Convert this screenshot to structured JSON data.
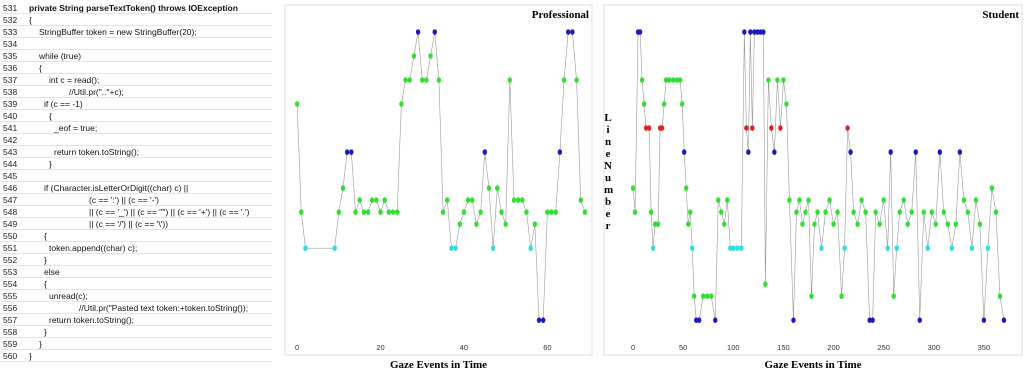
{
  "code": {
    "rows": [
      {
        "n": "531",
        "code": "private String parseTextToken() throws IOException"
      },
      {
        "n": "532",
        "code": "{"
      },
      {
        "n": "533",
        "code": "StringBuffer token = new StringBuffer(20);"
      },
      {
        "n": "534"
      },
      {
        "n": "535",
        "code": "while (true)"
      },
      {
        "n": "536",
        "code": "{"
      },
      {
        "n": "537",
        "code": "int c = read();"
      },
      {
        "n": "538",
        "code": "//Util.pr(\"..\"+c);"
      },
      {
        "n": "539",
        "code": "if (c == -1)"
      },
      {
        "n": "540",
        "code": "{"
      },
      {
        "n": "541",
        "code": "_eof = true;"
      },
      {
        "n": "542"
      },
      {
        "n": "543",
        "code": "return token.toString();"
      },
      {
        "n": "544",
        "code": "}"
      },
      {
        "n": "545"
      },
      {
        "n": "546",
        "code": "if (Character.isLetterOrDigit((char) c) ||"
      },
      {
        "n": "547",
        "code": "(c == ':') || (c == '-')"
      },
      {
        "n": "548",
        "code": "|| (c == '_') || (c == '\"') || (c == '+') || (c == '.')"
      },
      {
        "n": "549",
        "code": "|| (c == '/') || (c == '\\'))"
      },
      {
        "n": "550",
        "code": "{"
      },
      {
        "n": "551",
        "code": "token.append((char) c);"
      },
      {
        "n": "552",
        "code": "}"
      },
      {
        "n": "553",
        "code": "else"
      },
      {
        "n": "554",
        "code": "{"
      },
      {
        "n": "555",
        "code": "unread(c);"
      },
      {
        "n": "556",
        "code": "//Util.pr(\"Pasted text token:+token.toString());"
      },
      {
        "n": "557",
        "code": "return token.toString();"
      },
      {
        "n": "558",
        "code": "}"
      },
      {
        "n": "559",
        "code": "}"
      },
      {
        "n": "560",
        "code": "}"
      }
    ]
  },
  "chart_data": [
    {
      "type": "line",
      "title": "Professional",
      "xlabel": "Gaze Events in Time",
      "xlim": [
        -2.9,
        70.7
      ],
      "xticks": [
        0,
        20,
        40,
        60
      ],
      "ylim": [
        559.9,
        530.75
      ],
      "line_color": "#999999",
      "x": [
        0,
        1,
        2,
        9,
        10,
        11,
        12,
        13,
        14,
        15,
        16,
        17,
        18,
        19,
        20,
        21,
        22,
        23,
        24,
        25,
        26,
        27,
        28,
        29,
        30,
        31,
        32,
        33,
        34,
        35,
        36,
        37,
        38,
        39,
        40,
        41,
        42,
        43,
        44,
        45,
        46,
        47,
        48,
        49,
        50,
        51,
        52,
        53,
        54,
        55,
        56,
        57,
        58,
        59,
        60,
        61,
        62,
        63,
        64,
        65,
        66,
        67,
        68,
        69
      ],
      "values": [
        539,
        548,
        551,
        551,
        548,
        546,
        543,
        543,
        548,
        547,
        548,
        548,
        547,
        547,
        548,
        547,
        548,
        548,
        548,
        539,
        537,
        537,
        535,
        533,
        537,
        537,
        535,
        533,
        537,
        548,
        547,
        551,
        551,
        549,
        548,
        547,
        547,
        549,
        548,
        543,
        546,
        551,
        546,
        548,
        549,
        537,
        547,
        547,
        547,
        548,
        551,
        549,
        557,
        557,
        548,
        548,
        548,
        543,
        537,
        533,
        533,
        537,
        547,
        548
      ],
      "colors": [
        "#33dd33",
        "#33dd33",
        "#33dddd",
        "#33dddd",
        "#33dd33",
        "#33dd33",
        "#1a1abf",
        "#1a1abf",
        "#33dd33",
        "#33dd33",
        "#33dd33",
        "#33dd33",
        "#33dd33",
        "#33dd33",
        "#33dd33",
        "#33dd33",
        "#33dd33",
        "#33dd33",
        "#33dd33",
        "#33dd33",
        "#33dd33",
        "#33dd33",
        "#33dd33",
        "#1a1abf",
        "#33dd33",
        "#33dd33",
        "#33dd33",
        "#1a1abf",
        "#33dd33",
        "#33dd33",
        "#33dd33",
        "#33dddd",
        "#33dddd",
        "#33dd33",
        "#33dd33",
        "#33dd33",
        "#33dd33",
        "#33dd33",
        "#33dd33",
        "#1a1abf",
        "#33dd33",
        "#33dddd",
        "#33dd33",
        "#33dd33",
        "#33dd33",
        "#33dd33",
        "#33dd33",
        "#33dd33",
        "#33dd33",
        "#33dd33",
        "#33dddd",
        "#33dd33",
        "#1a1abf",
        "#1a1abf",
        "#33dd33",
        "#33dd33",
        "#33dd33",
        "#1a1abf",
        "#33dd33",
        "#1a1abf",
        "#1a1abf",
        "#33dd33",
        "#33dd33",
        "#33dd33"
      ]
    },
    {
      "type": "line",
      "title": "Student",
      "xlabel": "Gaze Events in Time",
      "ylabel": "Line Number",
      "xlim": [
        -29,
        388
      ],
      "xticks": [
        0,
        50,
        100,
        150,
        200,
        250,
        300,
        350
      ],
      "ylim": [
        559.9,
        530.75
      ],
      "line_color": "#999999",
      "x": [
        0,
        2,
        5,
        7,
        9,
        11,
        13,
        16,
        18,
        20,
        22,
        25,
        27,
        29,
        31,
        33,
        36,
        40,
        44,
        47,
        49,
        51,
        53,
        55,
        57,
        59,
        61,
        63,
        66,
        70,
        74,
        78,
        82,
        85,
        88,
        91,
        94,
        97,
        100,
        104,
        108,
        111,
        113,
        115,
        117,
        119,
        121,
        124,
        127,
        130,
        132,
        135,
        138,
        141,
        144,
        147,
        150,
        153,
        156,
        160,
        163,
        166,
        169,
        172,
        175,
        178,
        181,
        184,
        188,
        192,
        196,
        200,
        204,
        208,
        211,
        214,
        217,
        220,
        224,
        228,
        232,
        236,
        239,
        242,
        246,
        250,
        254,
        257,
        260,
        263,
        266,
        270,
        274,
        278,
        282,
        286,
        290,
        294,
        298,
        302,
        306,
        310,
        314,
        318,
        322,
        326,
        330,
        334,
        338,
        342,
        346,
        350,
        354,
        358,
        362,
        366,
        370
      ],
      "values": [
        546,
        548,
        533,
        533,
        537,
        539,
        541,
        541,
        548,
        551,
        549,
        549,
        541,
        541,
        539,
        537,
        537,
        537,
        537,
        537,
        539,
        543,
        546,
        549,
        548,
        551,
        555,
        557,
        557,
        555,
        555,
        555,
        557,
        547,
        548,
        549,
        547,
        551,
        551,
        551,
        551,
        533,
        541,
        543,
        533,
        541,
        533,
        533,
        533,
        533,
        554,
        537,
        541,
        543,
        537,
        541,
        537,
        539,
        547,
        557,
        548,
        547,
        549,
        548,
        547,
        555,
        549,
        548,
        551,
        548,
        547,
        549,
        548,
        555,
        551,
        541,
        543,
        548,
        549,
        547,
        548,
        557,
        557,
        548,
        549,
        547,
        551,
        543,
        555,
        551,
        548,
        547,
        549,
        548,
        543,
        557,
        548,
        551,
        548,
        549,
        543,
        548,
        549,
        551,
        549,
        543,
        547,
        548,
        551,
        547,
        549,
        557,
        551,
        546,
        548,
        555,
        557
      ],
      "colors": [
        "#33dd33",
        "#33dd33",
        "#1a1abf",
        "#1a1abf",
        "#33dd33",
        "#33dd33",
        "#dd2222",
        "#dd2222",
        "#33dd33",
        "#33dddd",
        "#33dd33",
        "#33dd33",
        "#dd2222",
        "#dd2222",
        "#33dd33",
        "#33dd33",
        "#33dd33",
        "#33dd33",
        "#33dd33",
        "#33dd33",
        "#33dd33",
        "#1a1abf",
        "#33dd33",
        "#33dd33",
        "#33dd33",
        "#33dddd",
        "#33dd33",
        "#1a1abf",
        "#1a1abf",
        "#33dd33",
        "#33dd33",
        "#33dd33",
        "#1a1abf",
        "#33dd33",
        "#33dd33",
        "#33dd33",
        "#33dd33",
        "#33dddd",
        "#33dddd",
        "#33dddd",
        "#33dddd",
        "#1a1abf",
        "#dd2222",
        "#1a1abf",
        "#1a1abf",
        "#dd2222",
        "#1a1abf",
        "#1a1abf",
        "#1a1abf",
        "#1a1abf",
        "#33dd33",
        "#33dd33",
        "#dd2222",
        "#1a1abf",
        "#33dd33",
        "#dd2222",
        "#33dd33",
        "#33dd33",
        "#33dd33",
        "#1a1abf",
        "#33dd33",
        "#33dd33",
        "#33dd33",
        "#33dd33",
        "#33dd33",
        "#33dd33",
        "#33dd33",
        "#33dd33",
        "#33dddd",
        "#33dd33",
        "#33dd33",
        "#33dd33",
        "#33dd33",
        "#33dd33",
        "#33dddd",
        "#dd2222",
        "#1a1abf",
        "#33dd33",
        "#33dd33",
        "#33dd33",
        "#33dd33",
        "#1a1abf",
        "#1a1abf",
        "#33dd33",
        "#33dd33",
        "#33dd33",
        "#33dddd",
        "#1a1abf",
        "#33dd33",
        "#33dddd",
        "#33dd33",
        "#33dd33",
        "#33dd33",
        "#33dd33",
        "#1a1abf",
        "#1a1abf",
        "#33dd33",
        "#33dddd",
        "#33dd33",
        "#33dd33",
        "#1a1abf",
        "#33dd33",
        "#33dd33",
        "#33dddd",
        "#33dd33",
        "#1a1abf",
        "#33dd33",
        "#33dd33",
        "#33dddd",
        "#33dd33",
        "#33dd33",
        "#1a1abf",
        "#33dddd",
        "#33dd33",
        "#33dd33",
        "#33dd33",
        "#1a1abf"
      ]
    }
  ]
}
